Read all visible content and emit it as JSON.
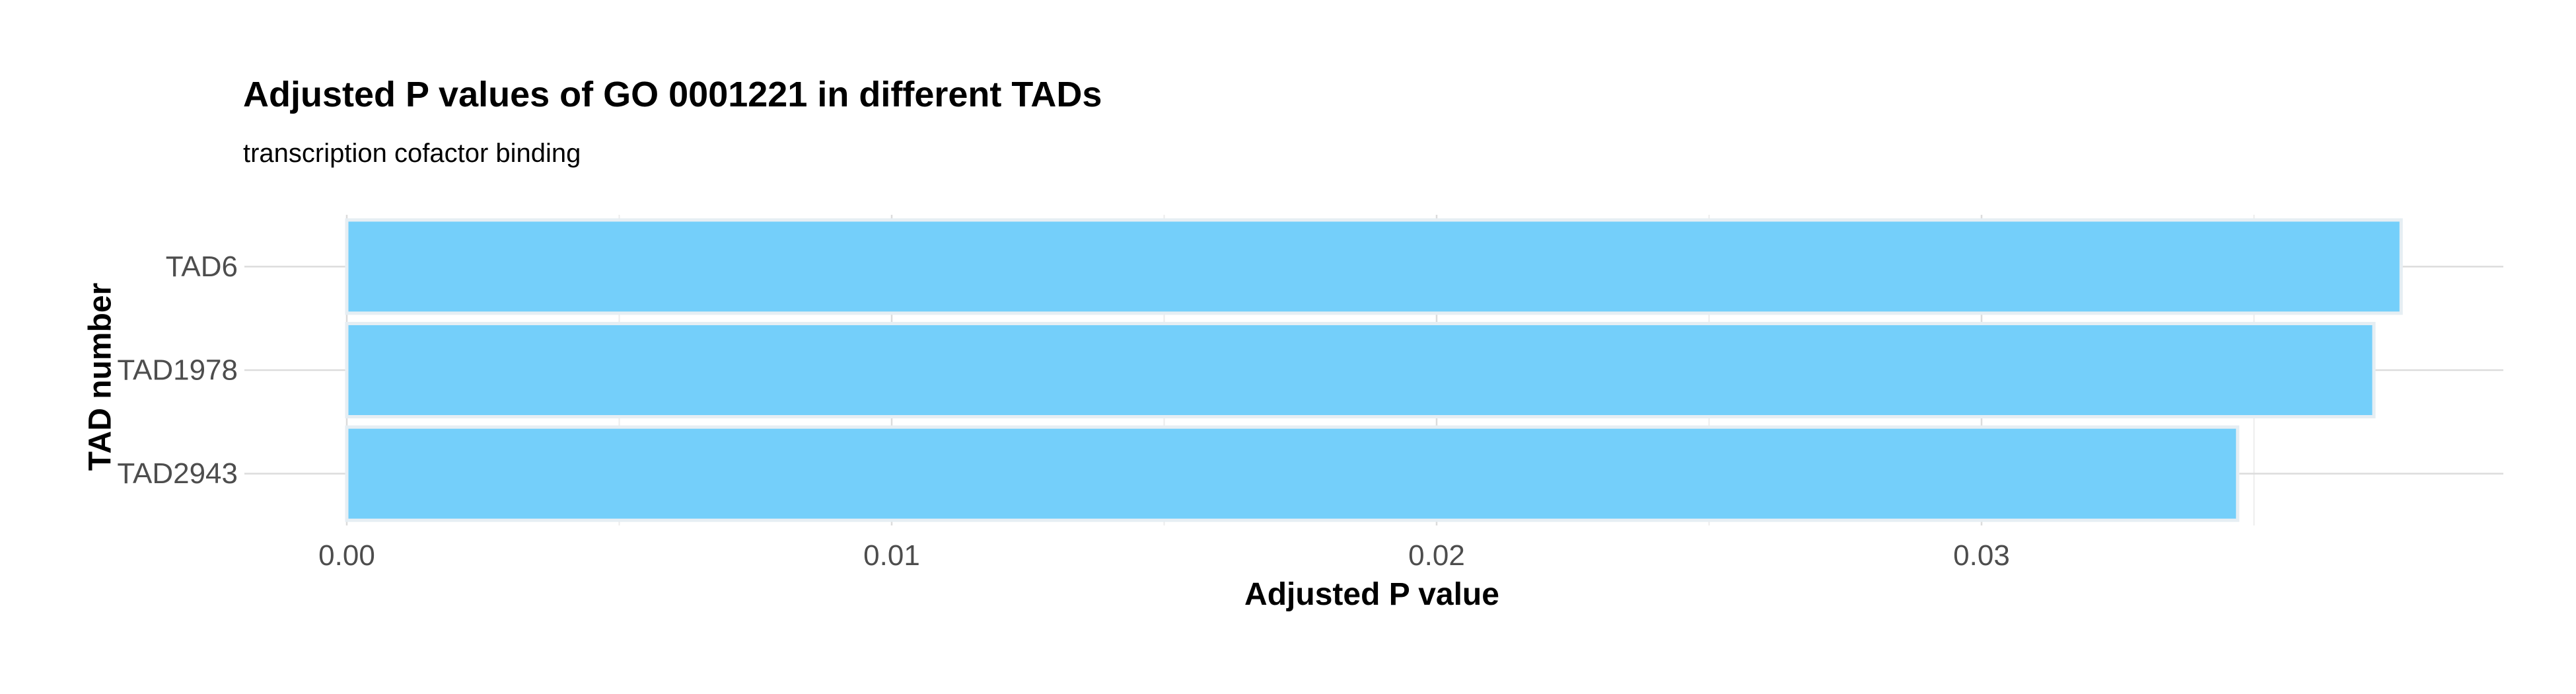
{
  "chart_data": {
    "type": "bar",
    "orientation": "horizontal",
    "title": "Adjusted P values of GO 0001221 in different TADs",
    "subtitle": "transcription cofactor binding",
    "xlabel": "Adjusted P value",
    "ylabel": "TAD number",
    "categories": [
      "TAD6",
      "TAD1978",
      "TAD2943"
    ],
    "values": [
      0.0377,
      0.0372,
      0.0347
    ],
    "xlim": [
      0,
      0.0395
    ],
    "x_ticks": [
      0,
      0.01,
      0.02,
      0.03
    ],
    "x_tick_labels": [
      "0.00",
      "0.01",
      "0.02",
      "0.03"
    ],
    "x_minor_ticks": [
      0.005,
      0.015,
      0.025,
      0.035
    ],
    "grid": true,
    "legend": "none",
    "colors": {
      "bar_fill": "#74CFFA",
      "bar_stroke": "#e6eef3",
      "grid_major": "#dcdcdc",
      "grid_minor": "#ececec"
    }
  }
}
